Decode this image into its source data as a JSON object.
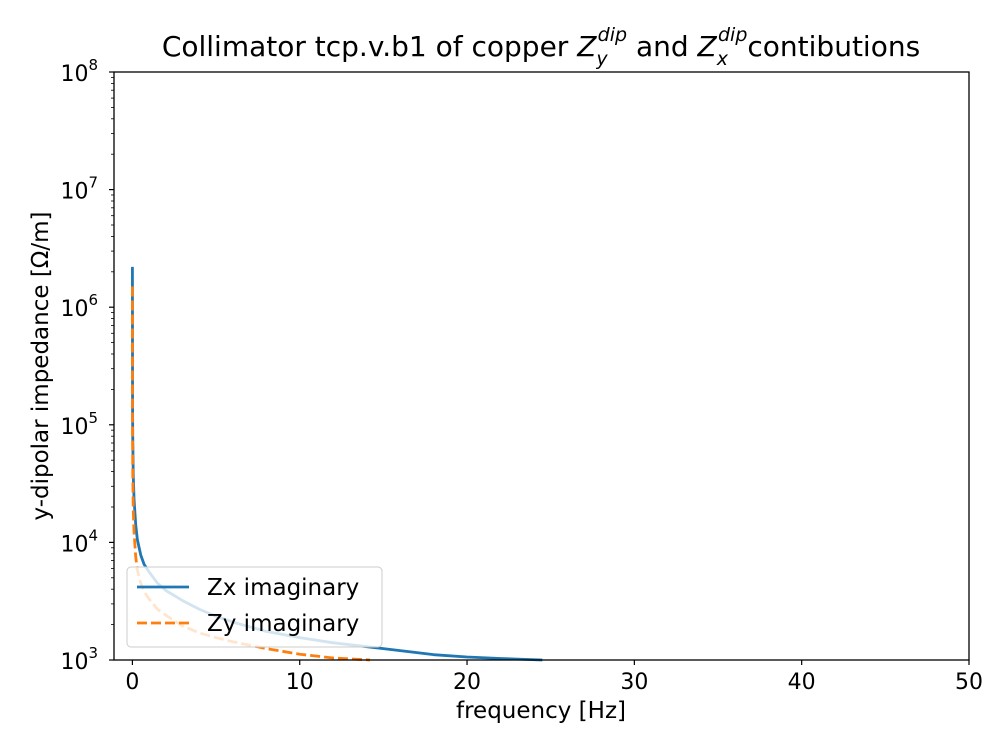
{
  "chart_data": {
    "type": "line",
    "title": {
      "prefix": "Collimator tcp.v.b1 of copper ",
      "z1_base": "Z",
      "z1_sub": "y",
      "z1_sup": "dip",
      "mid": " and ",
      "z2_base": "Z",
      "z2_sub": "x",
      "z2_sup": "dip",
      "suffix": "contibutions"
    },
    "xlabel": "frequency [Hz]",
    "ylabel": "y-dipolar impedance [Ω/m]",
    "xlim": [
      -1.1,
      50
    ],
    "ylim_log10": [
      3,
      8
    ],
    "y_scale": "log",
    "x_ticks": [
      {
        "value": 0,
        "label": "0"
      },
      {
        "value": 10,
        "label": "10"
      },
      {
        "value": 20,
        "label": "20"
      },
      {
        "value": 30,
        "label": "30"
      },
      {
        "value": 40,
        "label": "40"
      },
      {
        "value": 50,
        "label": "50"
      }
    ],
    "y_ticks": [
      {
        "exp": 3,
        "base": "10",
        "power": "3"
      },
      {
        "exp": 4,
        "base": "10",
        "power": "4"
      },
      {
        "exp": 5,
        "base": "10",
        "power": "5"
      },
      {
        "exp": 6,
        "base": "10",
        "power": "6"
      },
      {
        "exp": 7,
        "base": "10",
        "power": "7"
      },
      {
        "exp": 8,
        "base": "10",
        "power": "8"
      }
    ],
    "grid": false,
    "legend_position": "lower-left",
    "series": [
      {
        "name": "Zx imaginary",
        "color": "#1f77b4",
        "style": "solid",
        "x": [
          0.0,
          0.01,
          0.02,
          0.05,
          0.1,
          0.2,
          0.3,
          0.5,
          0.7,
          1,
          1.5,
          2,
          3,
          4,
          5,
          6,
          8,
          10,
          12,
          15,
          18,
          20,
          22,
          24.5
        ],
        "y": [
          2200000,
          140000,
          80000,
          38000,
          23000,
          14000,
          10500,
          7800,
          6500,
          5600,
          4500,
          3900,
          3200,
          2700,
          2350,
          2100,
          1750,
          1550,
          1400,
          1250,
          1110,
          1060,
          1030,
          1000
        ]
      },
      {
        "name": "Zy imaginary",
        "color": "#ff7f0e",
        "style": "dashed",
        "x": [
          0.0,
          0.01,
          0.02,
          0.05,
          0.1,
          0.2,
          0.3,
          0.5,
          0.7,
          1,
          1.5,
          2,
          3,
          4,
          5,
          6,
          8,
          10,
          12,
          14.2
        ],
        "y": [
          1500000,
          80000,
          40000,
          19000,
          12000,
          7500,
          5800,
          4500,
          3800,
          3300,
          2700,
          2400,
          1950,
          1700,
          1550,
          1430,
          1250,
          1120,
          1040,
          1000
        ]
      }
    ]
  }
}
